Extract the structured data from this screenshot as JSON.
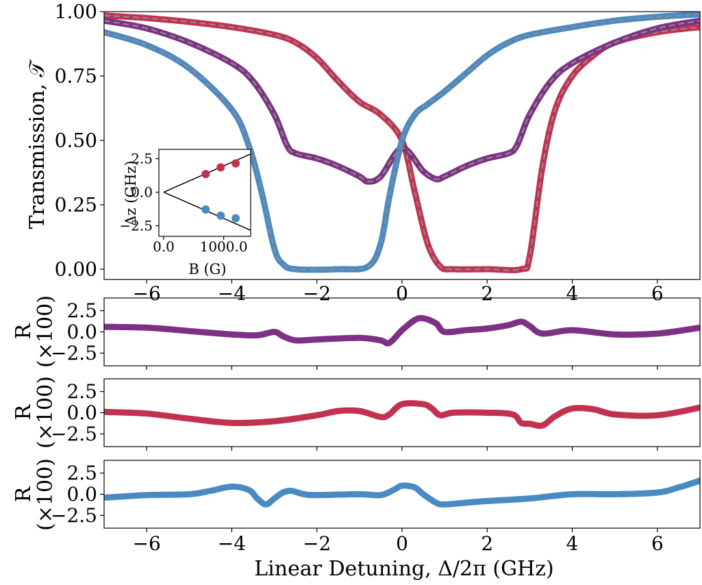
{
  "colors": {
    "red": "#c2324f",
    "purple": "#7d3184",
    "blue": "#4a8ac3",
    "fit": "#8c8c8c",
    "line": "#000000"
  },
  "chart_data": [
    {
      "type": "line",
      "panel": "transmission",
      "xlabel": "Linear Detuning, Δ/2π (GHz)",
      "ylabel": "Transmission, 𝒯",
      "xlim": [
        -7,
        7
      ],
      "ylim": [
        -0.04,
        1.0
      ],
      "xticks": [
        -6,
        -4,
        -2,
        0,
        2,
        4,
        6
      ],
      "xtick_labels": [
        "−6",
        "−4",
        "−2",
        "0",
        "2",
        "4",
        "6"
      ],
      "yticks": [
        0.0,
        0.25,
        0.5,
        0.75,
        1.0
      ],
      "ytick_labels": [
        "0.00",
        "0.25",
        "0.50",
        "0.75",
        "1.00"
      ],
      "grid": false,
      "series": [
        {
          "color_key": "red",
          "fit_dashed": true,
          "x": [
            -7,
            -6,
            -5,
            -4,
            -3,
            -2.5,
            -2,
            -1.5,
            -1,
            -0.5,
            0,
            0.3,
            0.6,
            0.9,
            1.2,
            2.0,
            2.8,
            3.0,
            3.3,
            3.6,
            4.0,
            4.5,
            5,
            6,
            7
          ],
          "y": [
            0.985,
            0.975,
            0.96,
            0.94,
            0.91,
            0.88,
            0.82,
            0.73,
            0.65,
            0.6,
            0.5,
            0.3,
            0.1,
            0.01,
            0.0,
            0.0,
            0.0,
            0.05,
            0.4,
            0.62,
            0.75,
            0.83,
            0.88,
            0.92,
            0.94
          ]
        },
        {
          "color_key": "purple",
          "fit_dashed": true,
          "x": [
            -7,
            -6,
            -5,
            -4,
            -3.5,
            -3,
            -2.7,
            -2.5,
            -2,
            -1.5,
            -1,
            -0.8,
            -0.5,
            0,
            0.5,
            0.8,
            1,
            1.5,
            2,
            2.5,
            2.7,
            3,
            3.5,
            4,
            5,
            6,
            7
          ],
          "y": [
            0.965,
            0.935,
            0.88,
            0.8,
            0.73,
            0.6,
            0.48,
            0.45,
            0.43,
            0.4,
            0.36,
            0.34,
            0.36,
            0.47,
            0.38,
            0.35,
            0.36,
            0.4,
            0.43,
            0.45,
            0.48,
            0.6,
            0.73,
            0.8,
            0.88,
            0.935,
            0.965
          ]
        },
        {
          "color_key": "blue",
          "fit_dashed": true,
          "x": [
            -7,
            -6,
            -5,
            -4,
            -3.6,
            -3.3,
            -3.0,
            -2.8,
            -2.5,
            -1.5,
            -0.8,
            -0.5,
            -0.3,
            0,
            0.3,
            0.6,
            1,
            1.5,
            2,
            2.5,
            3,
            4,
            5,
            6,
            7
          ],
          "y": [
            0.92,
            0.87,
            0.78,
            0.62,
            0.48,
            0.3,
            0.08,
            0.02,
            0.0,
            0.0,
            0.01,
            0.1,
            0.28,
            0.5,
            0.6,
            0.64,
            0.69,
            0.76,
            0.83,
            0.88,
            0.91,
            0.94,
            0.965,
            0.98,
            0.99
          ]
        }
      ]
    },
    {
      "type": "scatter",
      "panel": "inset",
      "xlabel": "B (G)",
      "ylabel": "Δz (GHz)",
      "xlim": [
        -80,
        1450
      ],
      "ylim": [
        -3.3,
        3.2
      ],
      "xticks": [
        0,
        1000
      ],
      "xtick_labels": [
        "0.0",
        "1000.0"
      ],
      "yticks": [
        -2.5,
        0.0,
        2.5
      ],
      "ytick_labels": [
        "−2.5",
        "0.0",
        "2.5"
      ],
      "lines": [
        {
          "x": [
            0,
            1450
          ],
          "y": [
            0,
            2.85
          ]
        },
        {
          "x": [
            0,
            1450
          ],
          "y": [
            0,
            -2.85
          ]
        }
      ],
      "series": [
        {
          "color_key": "red",
          "x": [
            700,
            950,
            1200
          ],
          "y": [
            1.35,
            1.85,
            2.15
          ]
        },
        {
          "color_key": "blue",
          "x": [
            700,
            950,
            1200
          ],
          "y": [
            -1.3,
            -1.75,
            -1.95
          ]
        }
      ]
    },
    {
      "type": "line",
      "panel": "residual-purple",
      "ylabel_line1": "R",
      "ylabel_line2": "(×100)",
      "xlim": [
        -7,
        7
      ],
      "ylim": [
        -4.0,
        4.0
      ],
      "yticks": [
        -2.5,
        0.0,
        2.5
      ],
      "ytick_labels": [
        "−2.5",
        "0.0",
        "2.5"
      ],
      "series": [
        {
          "color_key": "purple",
          "x": [
            -7,
            -6,
            -5,
            -4,
            -3.4,
            -3.0,
            -2.8,
            -2.5,
            -2,
            -1,
            -0.5,
            -0.3,
            0,
            0.3,
            0.5,
            0.8,
            1,
            1.5,
            2,
            2.5,
            2.8,
            3.0,
            3.3,
            4,
            5,
            6,
            7
          ],
          "y": [
            0.6,
            0.5,
            0.1,
            -0.3,
            -0.4,
            0.0,
            -0.5,
            -1.0,
            -0.9,
            -0.7,
            -1.0,
            -1.3,
            0.2,
            1.4,
            1.6,
            1.0,
            0.0,
            0.2,
            0.4,
            0.8,
            1.2,
            0.7,
            -0.2,
            0.2,
            -0.3,
            -0.2,
            0.5
          ]
        }
      ]
    },
    {
      "type": "line",
      "panel": "residual-red",
      "ylabel_line1": "R",
      "ylabel_line2": "(×100)",
      "xlim": [
        -7,
        7
      ],
      "ylim": [
        -4.0,
        4.0
      ],
      "yticks": [
        -2.5,
        0.0,
        2.5
      ],
      "ytick_labels": [
        "−2.5",
        "0.0",
        "2.5"
      ],
      "series": [
        {
          "color_key": "red",
          "x": [
            -7,
            -6,
            -5,
            -4,
            -3,
            -2,
            -1.5,
            -1,
            -0.5,
            -0.3,
            0,
            0.5,
            0.7,
            0.9,
            1.2,
            2,
            2.6,
            2.8,
            3.0,
            3.3,
            3.6,
            4,
            4.5,
            5,
            6,
            7
          ],
          "y": [
            0.1,
            -0.1,
            -0.7,
            -1.2,
            -1.0,
            -0.3,
            0.2,
            0.2,
            -0.5,
            -0.2,
            1.0,
            1.0,
            0.5,
            -0.3,
            0.0,
            0.0,
            -0.2,
            -1.2,
            -1.3,
            -1.5,
            -0.4,
            0.5,
            0.4,
            -0.2,
            -0.3,
            0.6
          ]
        }
      ]
    },
    {
      "type": "line",
      "panel": "residual-blue",
      "ylabel_line1": "R",
      "ylabel_line2": "(×100)",
      "xlabel": "Linear Detuning, Δ/2π (GHz)",
      "xlim": [
        -7,
        7
      ],
      "ylim": [
        -4.0,
        4.0
      ],
      "xticks": [
        -6,
        -4,
        -2,
        0,
        2,
        4,
        6
      ],
      "xtick_labels": [
        "−6",
        "−4",
        "−2",
        "0",
        "2",
        "4",
        "6"
      ],
      "yticks": [
        -2.5,
        0.0,
        2.5
      ],
      "ytick_labels": [
        "−2.5",
        "0.0",
        "2.5"
      ],
      "series": [
        {
          "color_key": "blue",
          "x": [
            -7,
            -6,
            -5,
            -4.5,
            -4,
            -3.6,
            -3.4,
            -3.2,
            -3.0,
            -2.8,
            -2.6,
            -2.3,
            -2,
            -1,
            -0.5,
            -0.2,
            0,
            0.3,
            0.5,
            0.8,
            1,
            1.5,
            2,
            3,
            4,
            5,
            6,
            6.5,
            7
          ],
          "y": [
            -0.4,
            -0.1,
            0.0,
            0.4,
            0.9,
            0.5,
            -0.5,
            -1.2,
            -0.5,
            0.2,
            0.4,
            0.0,
            -0.1,
            0.0,
            -0.1,
            0.5,
            1.0,
            0.8,
            0.0,
            -1.0,
            -1.2,
            -1.0,
            -0.8,
            -0.5,
            0.0,
            0.0,
            0.2,
            0.8,
            1.6
          ]
        }
      ]
    }
  ]
}
